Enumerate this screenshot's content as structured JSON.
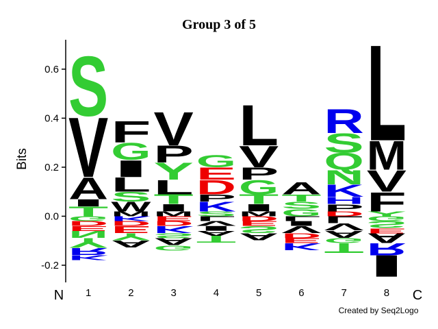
{
  "chart_data": {
    "type": "logo",
    "title": "Group 3 of 5",
    "y_label": "Bits",
    "start_label": "N",
    "end_label": "C",
    "credit": "Created by Seq2Logo",
    "ylim": [
      -0.27,
      0.72
    ],
    "yticks": [
      -0.2,
      {
        "value": 0,
        "label": "0.0"
      },
      0.2,
      0.4,
      0.6
    ],
    "categories": [
      "1",
      "2",
      "3",
      "4",
      "5",
      "6",
      "7",
      "8"
    ],
    "letter_colors": {
      "A": "#000000",
      "V": "#000000",
      "L": "#000000",
      "I": "#000000",
      "M": "#000000",
      "F": "#000000",
      "W": "#000000",
      "P": "#000000",
      "S": "#33cc33",
      "T": "#33cc33",
      "G": "#33cc33",
      "Y": "#33cc33",
      "Q": "#33cc33",
      "N": "#33cc33",
      "C": "#33cc33",
      "K": "#0000ee",
      "R": "#0000ee",
      "H": "#0000ee",
      "D": "#ee0000",
      "E": "#ee0000"
    },
    "positions": [
      {
        "letters": [
          "T",
          "I",
          "A",
          "V",
          "S",
          "G",
          "D",
          "E",
          "N",
          "Y",
          "R",
          "K"
        ],
        "values": [
          0.04,
          0.03,
          0.09,
          0.25,
          0.25,
          -0.02,
          -0.02,
          -0.02,
          -0.03,
          -0.04,
          -0.03,
          -0.02
        ]
      },
      {
        "letters": [
          "M",
          "W",
          "S",
          "L",
          "I",
          "G",
          "F",
          "K",
          "D",
          "E",
          "Y",
          "A"
        ],
        "values": [
          0.02,
          0.04,
          0.04,
          0.06,
          0.07,
          0.07,
          0.09,
          -0.02,
          -0.02,
          -0.03,
          -0.03,
          -0.03
        ]
      },
      {
        "letters": [
          "M",
          "I",
          "T",
          "L",
          "Y",
          "P",
          "V",
          "E",
          "D",
          "K",
          "S",
          "A",
          "G"
        ],
        "values": [
          0.02,
          0.03,
          0.04,
          0.06,
          0.07,
          0.07,
          0.14,
          -0.02,
          -0.02,
          -0.03,
          -0.02,
          -0.03,
          -0.02
        ]
      },
      {
        "letters": [
          "S",
          "K",
          "P",
          "D",
          "E",
          "G",
          "L",
          "V",
          "I",
          "A",
          "T"
        ],
        "values": [
          0.02,
          0.04,
          0.03,
          0.06,
          0.05,
          0.05,
          -0.02,
          -0.02,
          -0.02,
          -0.02,
          -0.03
        ]
      },
      {
        "letters": [
          "M",
          "I",
          "T",
          "G",
          "P",
          "V",
          "L",
          "D",
          "E",
          "S",
          "A"
        ],
        "values": [
          0.02,
          0.03,
          0.04,
          0.06,
          0.05,
          0.09,
          0.17,
          -0.02,
          -0.02,
          -0.03,
          -0.03
        ]
      },
      {
        "letters": [
          "G",
          "S",
          "T",
          "A",
          "L",
          "I",
          "V",
          "D",
          "E",
          "K"
        ],
        "values": [
          0.03,
          0.03,
          0.03,
          0.05,
          -0.02,
          -0.02,
          -0.03,
          -0.02,
          -0.02,
          -0.03
        ]
      },
      {
        "letters": [
          "D",
          "P",
          "H",
          "K",
          "N",
          "Q",
          "S",
          "R",
          "L",
          "V",
          "A",
          "G",
          "T"
        ],
        "values": [
          0.02,
          0.03,
          0.03,
          0.05,
          0.06,
          0.07,
          0.08,
          0.1,
          -0.03,
          -0.03,
          -0.03,
          -0.02,
          -0.04
        ]
      },
      {
        "letters": [
          "Y",
          "F",
          "V",
          "M",
          "L",
          "G",
          "S",
          "E",
          "A",
          "R",
          "I"
        ],
        "values": [
          0.02,
          0.08,
          0.09,
          0.12,
          0.4,
          -0.02,
          -0.03,
          -0.02,
          -0.04,
          -0.05,
          -0.09
        ]
      }
    ]
  }
}
